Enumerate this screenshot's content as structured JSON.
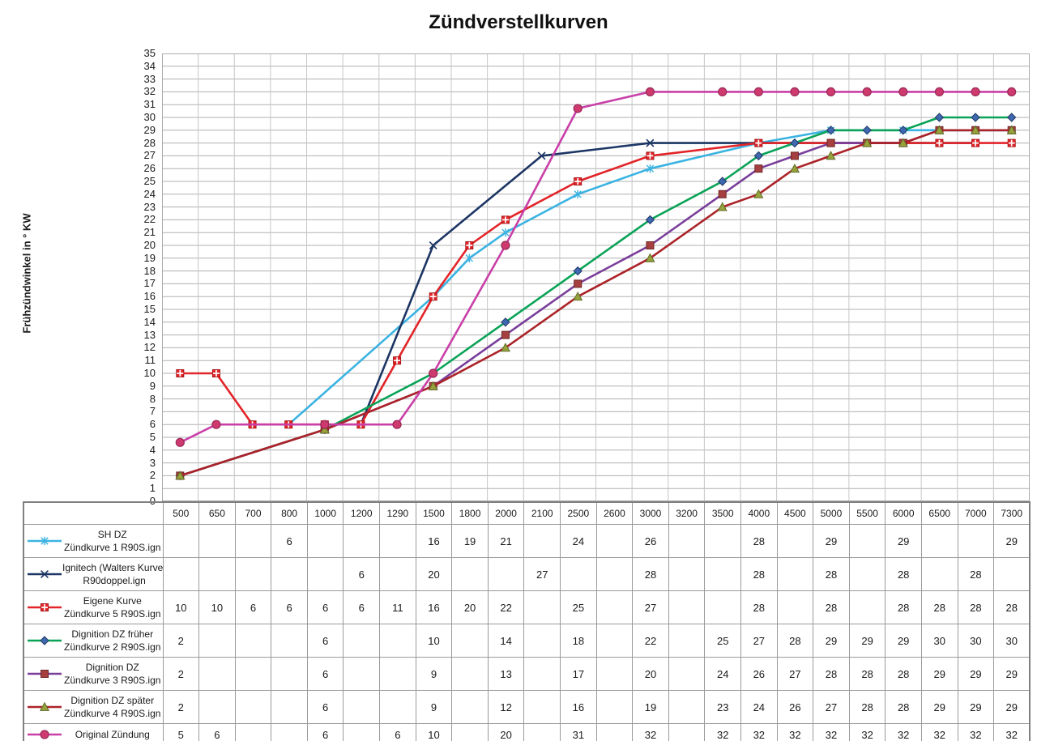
{
  "page": {
    "background": "#ffffff"
  },
  "chart_data": {
    "type": "line",
    "title": "Zündverstellkurven",
    "xlabel": "",
    "ylabel": "Frühzündwinkel in ° KW",
    "ylim": [
      0,
      35
    ],
    "ytick_step": 1,
    "grid": true,
    "legend_position": "table-below-left",
    "axis_color": "#7f7f7f",
    "hgrid_color": "#b0b0b0",
    "vgrid_color": "#c6c6c6",
    "plot_border_color": "#ababab",
    "table_border_color": "#9a9a9a",
    "categories": [
      "500",
      "650",
      "700",
      "800",
      "1000",
      "1200",
      "1290",
      "1500",
      "1800",
      "2000",
      "2100",
      "2500",
      "2600",
      "3000",
      "3200",
      "3500",
      "4000",
      "4500",
      "5000",
      "5500",
      "6000",
      "6500",
      "7000",
      "7300"
    ],
    "series": [
      {
        "name": "SH DZ Zündkurve 1 R90S.ign",
        "label_lines": [
          "SH DZ",
          "Zündkurve 1 R90S.ign"
        ],
        "color": "#3bb3e2",
        "marker": "star",
        "marker_fill": "#3bb3e2",
        "marker_stroke": "#3bb3e2",
        "table": [
          "",
          "",
          "",
          "6",
          "",
          "",
          "",
          "16",
          "19",
          "21",
          "",
          "24",
          "",
          "26",
          "",
          "",
          "28",
          "",
          "29",
          "",
          "29",
          "",
          "",
          "29"
        ],
        "plot": [
          null,
          null,
          null,
          6,
          null,
          null,
          null,
          16,
          19,
          21,
          null,
          24,
          null,
          26,
          null,
          null,
          28,
          null,
          29,
          null,
          29,
          null,
          null,
          29
        ]
      },
      {
        "name": "Ignitech (Walters Kurve) R90doppel.ign",
        "label_lines": [
          "Ignitech (Walters Kurve)",
          "R90doppel.ign"
        ],
        "color": "#1c3564",
        "marker": "x",
        "marker_fill": "#1c3564",
        "marker_stroke": "#1c3564",
        "table": [
          "",
          "",
          "",
          "",
          "",
          "6",
          "",
          "20",
          "",
          "",
          "27",
          "",
          "",
          "28",
          "",
          "",
          "28",
          "",
          "28",
          "",
          "28",
          "",
          "28",
          ""
        ],
        "plot": [
          null,
          null,
          null,
          null,
          null,
          6,
          null,
          20,
          null,
          null,
          27,
          null,
          null,
          28,
          null,
          null,
          28,
          null,
          28,
          null,
          28,
          null,
          28,
          null
        ]
      },
      {
        "name": "Eigene Kurve Zündkurve 5 R90S.ign",
        "label_lines": [
          "Eigene Kurve",
          "Zündkurve 5 R90S.ign"
        ],
        "color": "#e22428",
        "marker": "square-cross",
        "marker_fill": "#e22428",
        "marker_stroke": "#a81518",
        "table": [
          "10",
          "10",
          "6",
          "6",
          "6",
          "6",
          "11",
          "16",
          "20",
          "22",
          "",
          "25",
          "",
          "27",
          "",
          "",
          "28",
          "",
          "28",
          "",
          "28",
          "28",
          "28",
          "28"
        ],
        "plot": [
          10,
          10,
          6,
          6,
          6,
          6,
          11,
          16,
          20,
          22,
          null,
          25,
          null,
          27,
          null,
          null,
          28,
          null,
          28,
          null,
          28,
          28,
          28,
          28
        ]
      },
      {
        "name": "Dignition DZ früher Zündkurve 2 R90S.ign",
        "label_lines": [
          "Dignition DZ früher",
          "Zündkurve 2 R90S.ign"
        ],
        "color": "#09a357",
        "marker": "diamond",
        "marker_fill": "#3e68b0",
        "marker_stroke": "#1f3864",
        "table": [
          "2",
          "",
          "",
          "",
          "6",
          "",
          "",
          "10",
          "",
          "14",
          "",
          "18",
          "",
          "22",
          "",
          "25",
          "27",
          "28",
          "29",
          "29",
          "29",
          "30",
          "30",
          "30"
        ],
        "plot": [
          2,
          null,
          null,
          null,
          5.6,
          null,
          null,
          10,
          null,
          14,
          null,
          18,
          null,
          22,
          null,
          25,
          27,
          28,
          29,
          29,
          29,
          30,
          30,
          30
        ]
      },
      {
        "name": "Dignition DZ Zündkurve 3 R90S.ign",
        "label_lines": [
          "Dignition DZ",
          "Zündkurve 3 R90S.ign"
        ],
        "color": "#7a3e9b",
        "marker": "square",
        "marker_fill": "#a64040",
        "marker_stroke": "#6e2626",
        "table": [
          "2",
          "",
          "",
          "",
          "6",
          "",
          "",
          "9",
          "",
          "13",
          "",
          "17",
          "",
          "20",
          "",
          "24",
          "26",
          "27",
          "28",
          "28",
          "28",
          "29",
          "29",
          "29"
        ],
        "plot": [
          2,
          null,
          null,
          null,
          5.6,
          null,
          null,
          9,
          null,
          13,
          null,
          17,
          null,
          20,
          null,
          24,
          26,
          27,
          28,
          28,
          28,
          29,
          29,
          29
        ]
      },
      {
        "name": "Dignition DZ später Zündkurve 4 R90S.ign",
        "label_lines": [
          "Dignition DZ später",
          "Zündkurve 4 R90S.ign"
        ],
        "color": "#ab2328",
        "marker": "triangle",
        "marker_fill": "#98a23c",
        "marker_stroke": "#5f6b26",
        "table": [
          "2",
          "",
          "",
          "",
          "6",
          "",
          "",
          "9",
          "",
          "12",
          "",
          "16",
          "",
          "19",
          "",
          "23",
          "24",
          "26",
          "27",
          "28",
          "28",
          "29",
          "29",
          "29"
        ],
        "plot": [
          2,
          null,
          null,
          null,
          5.6,
          null,
          null,
          9,
          null,
          12,
          null,
          16,
          null,
          19,
          null,
          23,
          24,
          26,
          27,
          28,
          28,
          29,
          29,
          29
        ]
      },
      {
        "name": "Original Zündung",
        "label_lines": [
          "Original Zündung"
        ],
        "color": "#c93fa8",
        "marker": "circle",
        "marker_fill": "#cf3a6e",
        "marker_stroke": "#992857",
        "table": [
          "5",
          "6",
          "",
          "",
          "6",
          "",
          "6",
          "10",
          "",
          "20",
          "",
          "31",
          "",
          "32",
          "",
          "32",
          "32",
          "32",
          "32",
          "32",
          "32",
          "32",
          "32",
          "32"
        ],
        "plot": [
          4.6,
          6,
          null,
          null,
          6,
          null,
          6,
          10,
          null,
          20,
          null,
          30.7,
          null,
          32,
          null,
          32,
          32,
          32,
          32,
          32,
          32,
          32,
          32,
          32
        ]
      }
    ]
  }
}
